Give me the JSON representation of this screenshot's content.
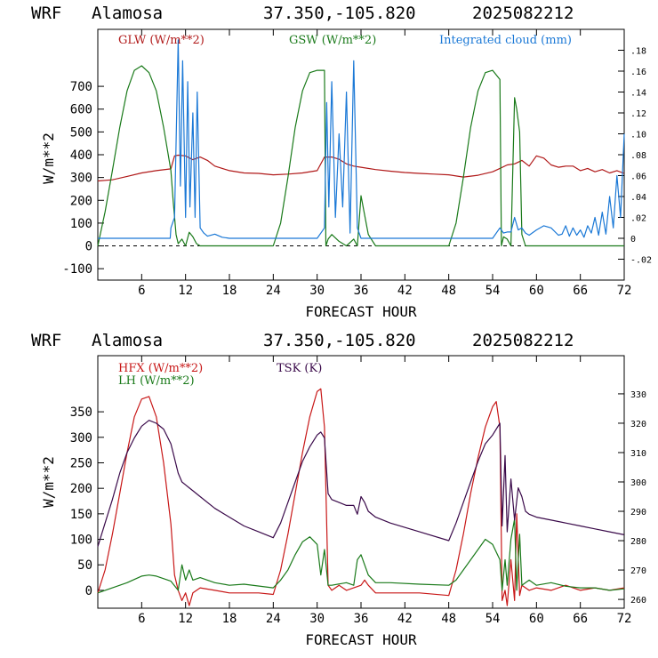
{
  "chart_data": [
    {
      "type": "line",
      "header": {
        "model": "WRF",
        "site": "Alamosa",
        "coords": "37.350,-105.820",
        "run": "2025082212"
      },
      "xlabel": "FORECAST HOUR",
      "ylabel": "W/m**2",
      "xlim": [
        0,
        72
      ],
      "ylim": [
        -150,
        950
      ],
      "y2lim": [
        -0.04,
        0.2
      ],
      "x_ticks": [
        6,
        12,
        18,
        24,
        30,
        36,
        42,
        48,
        54,
        60,
        66,
        72
      ],
      "y_ticks": [
        -100,
        0,
        100,
        200,
        300,
        400,
        500,
        600,
        700
      ],
      "y2_ticks": [
        -0.02,
        0,
        0.02,
        0.04,
        0.06,
        0.08,
        0.1,
        0.12,
        0.14,
        0.16,
        0.18
      ],
      "y2_tick_labels": [
        "-.02",
        "0",
        ".02",
        ".04",
        ".06",
        ".08",
        ".10",
        ".12",
        ".14",
        ".16",
        ".18"
      ],
      "zero_line": true,
      "series": [
        {
          "name": "GLW (W/m**2)",
          "axis": "left",
          "color": "#b01818",
          "x": [
            0,
            2,
            4,
            6,
            8,
            10,
            10.5,
            11,
            12,
            13,
            14,
            15,
            16,
            18,
            20,
            22,
            24,
            26,
            28,
            30,
            31,
            32,
            33,
            34,
            35,
            36,
            38,
            40,
            42,
            44,
            46,
            48,
            50,
            52,
            54,
            55,
            56,
            57,
            58,
            59,
            60,
            61,
            62,
            63,
            64,
            65,
            66,
            67,
            68,
            69,
            70,
            71,
            72
          ],
          "y": [
            285,
            290,
            305,
            320,
            330,
            338,
            395,
            398,
            395,
            378,
            390,
            375,
            350,
            330,
            320,
            318,
            312,
            315,
            320,
            330,
            390,
            390,
            380,
            360,
            350,
            345,
            335,
            328,
            322,
            318,
            315,
            312,
            302,
            310,
            325,
            340,
            355,
            360,
            375,
            350,
            395,
            385,
            355,
            345,
            350,
            350,
            330,
            340,
            325,
            335,
            320,
            330,
            318
          ]
        },
        {
          "name": "GSW (W/m**2)",
          "axis": "left",
          "color": "#1a7a1a",
          "x": [
            0,
            1,
            2,
            3,
            4,
            5,
            6,
            7,
            8,
            9,
            10,
            10.3,
            10.7,
            11,
            11.5,
            12,
            12.5,
            13,
            13.5,
            14,
            15,
            20,
            24,
            25,
            26,
            27,
            28,
            29,
            30,
            31,
            31.2,
            31.5,
            32,
            33,
            34,
            35,
            35.5,
            36,
            37,
            38,
            48,
            49,
            50,
            51,
            52,
            53,
            54,
            55,
            55.2,
            55.5,
            56,
            56.5,
            57,
            57.3,
            57.7,
            58,
            58.5,
            59,
            60,
            72
          ],
          "y": [
            0,
            150,
            330,
            520,
            680,
            770,
            790,
            760,
            680,
            520,
            330,
            200,
            50,
            10,
            30,
            0,
            60,
            40,
            10,
            0,
            0,
            0,
            0,
            100,
            300,
            520,
            680,
            760,
            770,
            770,
            0,
            30,
            50,
            20,
            0,
            30,
            0,
            220,
            50,
            0,
            0,
            100,
            300,
            520,
            680,
            760,
            770,
            730,
            0,
            40,
            30,
            0,
            650,
            600,
            500,
            50,
            0,
            0,
            0,
            0
          ]
        },
        {
          "name": "Integrated cloud (mm)",
          "axis": "right",
          "color": "#1a78d6",
          "x": [
            0,
            9.9,
            10,
            10.5,
            11,
            11.3,
            11.6,
            12,
            12.3,
            12.6,
            13,
            13.3,
            13.6,
            14,
            14.5,
            15,
            16,
            17,
            18,
            19,
            30,
            31,
            31.3,
            31.6,
            32,
            32.5,
            33,
            33.5,
            34,
            34.5,
            35,
            35.5,
            36,
            37,
            38,
            54,
            55,
            55.5,
            56,
            56.5,
            57,
            57.5,
            58,
            58.5,
            59,
            60,
            61,
            62,
            63,
            63.5,
            64,
            64.5,
            65,
            65.5,
            66,
            66.5,
            67,
            67.5,
            68,
            68.5,
            69,
            69.5,
            70,
            70.5,
            71,
            71.5,
            72
          ],
          "y": [
            0,
            0,
            0.01,
            0.02,
            0.19,
            0.05,
            0.17,
            0.02,
            0.15,
            0.03,
            0.12,
            0.02,
            0.14,
            0.01,
            0.005,
            0.002,
            0.004,
            0.001,
            0.0,
            0.0,
            0.0,
            0.01,
            0.13,
            0.03,
            0.15,
            0.02,
            0.1,
            0.03,
            0.14,
            0.005,
            0.17,
            0.01,
            0.0,
            0.0,
            0.0,
            0.0,
            0.01,
            0.005,
            0.006,
            0.006,
            0.02,
            0.008,
            0.01,
            0.005,
            0.003,
            0.008,
            0.012,
            0.01,
            0.003,
            0.004,
            0.012,
            0.002,
            0.01,
            0.003,
            0.008,
            0.001,
            0.012,
            0.005,
            0.02,
            0.003,
            0.025,
            0.004,
            0.04,
            0.01,
            0.06,
            0.02,
            0.1
          ]
        }
      ]
    },
    {
      "type": "line",
      "header": {
        "model": "WRF",
        "site": "Alamosa",
        "coords": "37.350,-105.820",
        "run": "2025082212"
      },
      "xlabel": "FORECAST HOUR",
      "ylabel": "W/m**2",
      "xlim": [
        0,
        72
      ],
      "ylim": [
        -35,
        460
      ],
      "y2lim": [
        257,
        343
      ],
      "x_ticks": [
        6,
        12,
        18,
        24,
        30,
        36,
        42,
        48,
        54,
        60,
        66,
        72
      ],
      "y_ticks": [
        0,
        50,
        100,
        150,
        200,
        250,
        300,
        350
      ],
      "y2_ticks": [
        260,
        270,
        280,
        290,
        300,
        310,
        320,
        330
      ],
      "series": [
        {
          "name": "HFX (W/m**2)",
          "axis": "left",
          "color": "#c81818",
          "x": [
            0,
            1,
            2,
            3,
            4,
            5,
            6,
            7,
            8,
            9,
            10,
            10.5,
            11,
            11.5,
            12,
            12.5,
            13,
            14,
            16,
            18,
            20,
            22,
            24,
            25,
            26,
            27,
            28,
            29,
            30,
            30.5,
            31,
            31.5,
            32,
            33,
            34,
            35,
            36,
            36.5,
            37,
            38,
            40,
            44,
            48,
            49,
            50,
            51,
            52,
            53,
            54,
            54.5,
            55,
            55.3,
            55.7,
            56,
            56.5,
            57,
            57.3,
            57.7,
            58,
            59,
            60,
            62,
            64,
            66,
            68,
            70,
            72
          ],
          "y": [
            -5,
            40,
            110,
            190,
            270,
            340,
            375,
            380,
            340,
            250,
            130,
            30,
            0,
            -20,
            -5,
            -30,
            -5,
            5,
            0,
            -5,
            -5,
            -5,
            -8,
            40,
            110,
            190,
            270,
            340,
            390,
            395,
            320,
            10,
            0,
            10,
            0,
            5,
            10,
            20,
            10,
            -5,
            -5,
            -5,
            -10,
            40,
            110,
            190,
            260,
            320,
            360,
            370,
            320,
            -20,
            0,
            -30,
            60,
            -20,
            150,
            -10,
            10,
            0,
            5,
            0,
            10,
            0,
            5,
            0,
            5
          ]
        },
        {
          "name": "LH  (W/m**2)",
          "axis": "left",
          "color": "#1a7a1a",
          "x": [
            0,
            2,
            4,
            6,
            7,
            8,
            10,
            11,
            11.5,
            12,
            12.5,
            13,
            14,
            16,
            18,
            20,
            24,
            25,
            26,
            27,
            28,
            29,
            30,
            30.5,
            31,
            31.5,
            32,
            34,
            35,
            35.5,
            36,
            37,
            38,
            40,
            44,
            48,
            49,
            50,
            52,
            53,
            54,
            55,
            55.3,
            55.7,
            56,
            56.5,
            57,
            57.3,
            57.7,
            58,
            59,
            60,
            62,
            64,
            66,
            68,
            70,
            72
          ],
          "y": [
            -5,
            5,
            15,
            28,
            30,
            28,
            18,
            0,
            50,
            20,
            40,
            20,
            25,
            15,
            10,
            12,
            5,
            20,
            40,
            70,
            95,
            105,
            90,
            30,
            80,
            10,
            10,
            15,
            10,
            60,
            70,
            30,
            15,
            15,
            12,
            10,
            20,
            40,
            80,
            100,
            90,
            60,
            0,
            60,
            10,
            100,
            140,
            0,
            110,
            10,
            20,
            10,
            15,
            8,
            5,
            5,
            0,
            3
          ]
        },
        {
          "name": "TSK (K)",
          "axis": "right",
          "color": "#3a0a4a",
          "x": [
            0,
            1,
            2,
            3,
            4,
            5,
            6,
            7,
            8,
            9,
            10,
            10.5,
            11,
            11.5,
            12,
            12.5,
            13,
            14,
            16,
            18,
            20,
            22,
            24,
            25,
            26,
            27,
            28,
            29,
            30,
            30.5,
            31,
            31.5,
            32,
            33,
            34,
            35,
            35.5,
            36,
            36.5,
            37,
            38,
            40,
            44,
            48,
            49,
            50,
            51,
            52,
            53,
            54,
            55,
            55.3,
            55.7,
            56,
            56.5,
            57,
            57.5,
            58,
            58.5,
            59,
            60,
            62,
            64,
            66,
            68,
            70,
            72
          ],
          "y": [
            278,
            286,
            294,
            303,
            310,
            315,
            319,
            321,
            320,
            318,
            313,
            308,
            303,
            300,
            299,
            298,
            297,
            295,
            291,
            288,
            285,
            283,
            281,
            286,
            293,
            300,
            307,
            312,
            316,
            317,
            315,
            296,
            294,
            293,
            292,
            292,
            289,
            295,
            293,
            290,
            288,
            286,
            283,
            280,
            286,
            293,
            300,
            307,
            313,
            316,
            320,
            285,
            309,
            283,
            301,
            287,
            298,
            295,
            290,
            289,
            288,
            287,
            286,
            285,
            284,
            283,
            282
          ]
        }
      ]
    }
  ]
}
